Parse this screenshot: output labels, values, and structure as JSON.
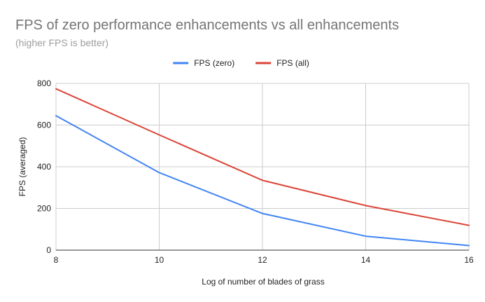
{
  "chart_data": {
    "type": "line",
    "title": "FPS of zero performance enhancements vs all enhancements",
    "subtitle": "(higher FPS is better)",
    "xlabel": "Log of number of blades of grass",
    "ylabel": "FPS (averaged)",
    "x": [
      8,
      10,
      12,
      14,
      16
    ],
    "xlim": [
      8,
      16
    ],
    "ylim": [
      0,
      800
    ],
    "x_ticks": [
      8,
      10,
      12,
      14,
      16
    ],
    "y_ticks": [
      0,
      200,
      400,
      600,
      800
    ],
    "grid": true,
    "legend_position": "top",
    "series": [
      {
        "name": "FPS (zero)",
        "color": "#4285f4",
        "values": [
          645,
          372,
          176,
          67,
          22
        ]
      },
      {
        "name": "FPS (all)",
        "color": "#db4437",
        "values": [
          774,
          553,
          335,
          214,
          119
        ]
      }
    ]
  }
}
